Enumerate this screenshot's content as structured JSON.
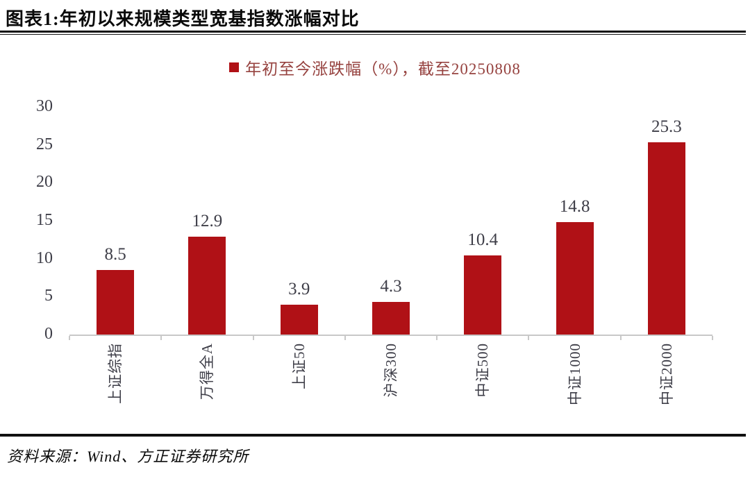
{
  "header": {
    "title": "图表1:年初以来规模类型宽基指数涨幅对比"
  },
  "legend": {
    "label": "年初至今涨跌幅（%），截至20250808"
  },
  "footer": {
    "source": "资料来源：Wind、方正证券研究所"
  },
  "colors": {
    "bar": "#b01116",
    "legend_text": "#96423f",
    "axis_line": "#c8c8c8",
    "tick_label": "#3e3e48",
    "rule": "#111111"
  },
  "chart_data": {
    "type": "bar",
    "title": "年初以来规模类型宽基指数涨幅对比",
    "series_label": "年初至今涨跌幅（%），截至20250808",
    "categories": [
      "上证综指",
      "万得全A",
      "上证50",
      "沪深300",
      "中证500",
      "中证1000",
      "中证2000"
    ],
    "values": [
      8.5,
      12.9,
      3.9,
      4.3,
      10.4,
      14.8,
      25.3
    ],
    "value_labels": [
      "8.5",
      "12.9",
      "3.9",
      "4.3",
      "10.4",
      "14.8",
      "25.3"
    ],
    "xlabel": "",
    "ylabel": "",
    "ylim": [
      0,
      30
    ],
    "yticks": [
      0,
      5,
      10,
      15,
      20,
      25,
      30
    ],
    "grid": false,
    "legend_position": "top-center",
    "bar_color": "#b01116"
  }
}
